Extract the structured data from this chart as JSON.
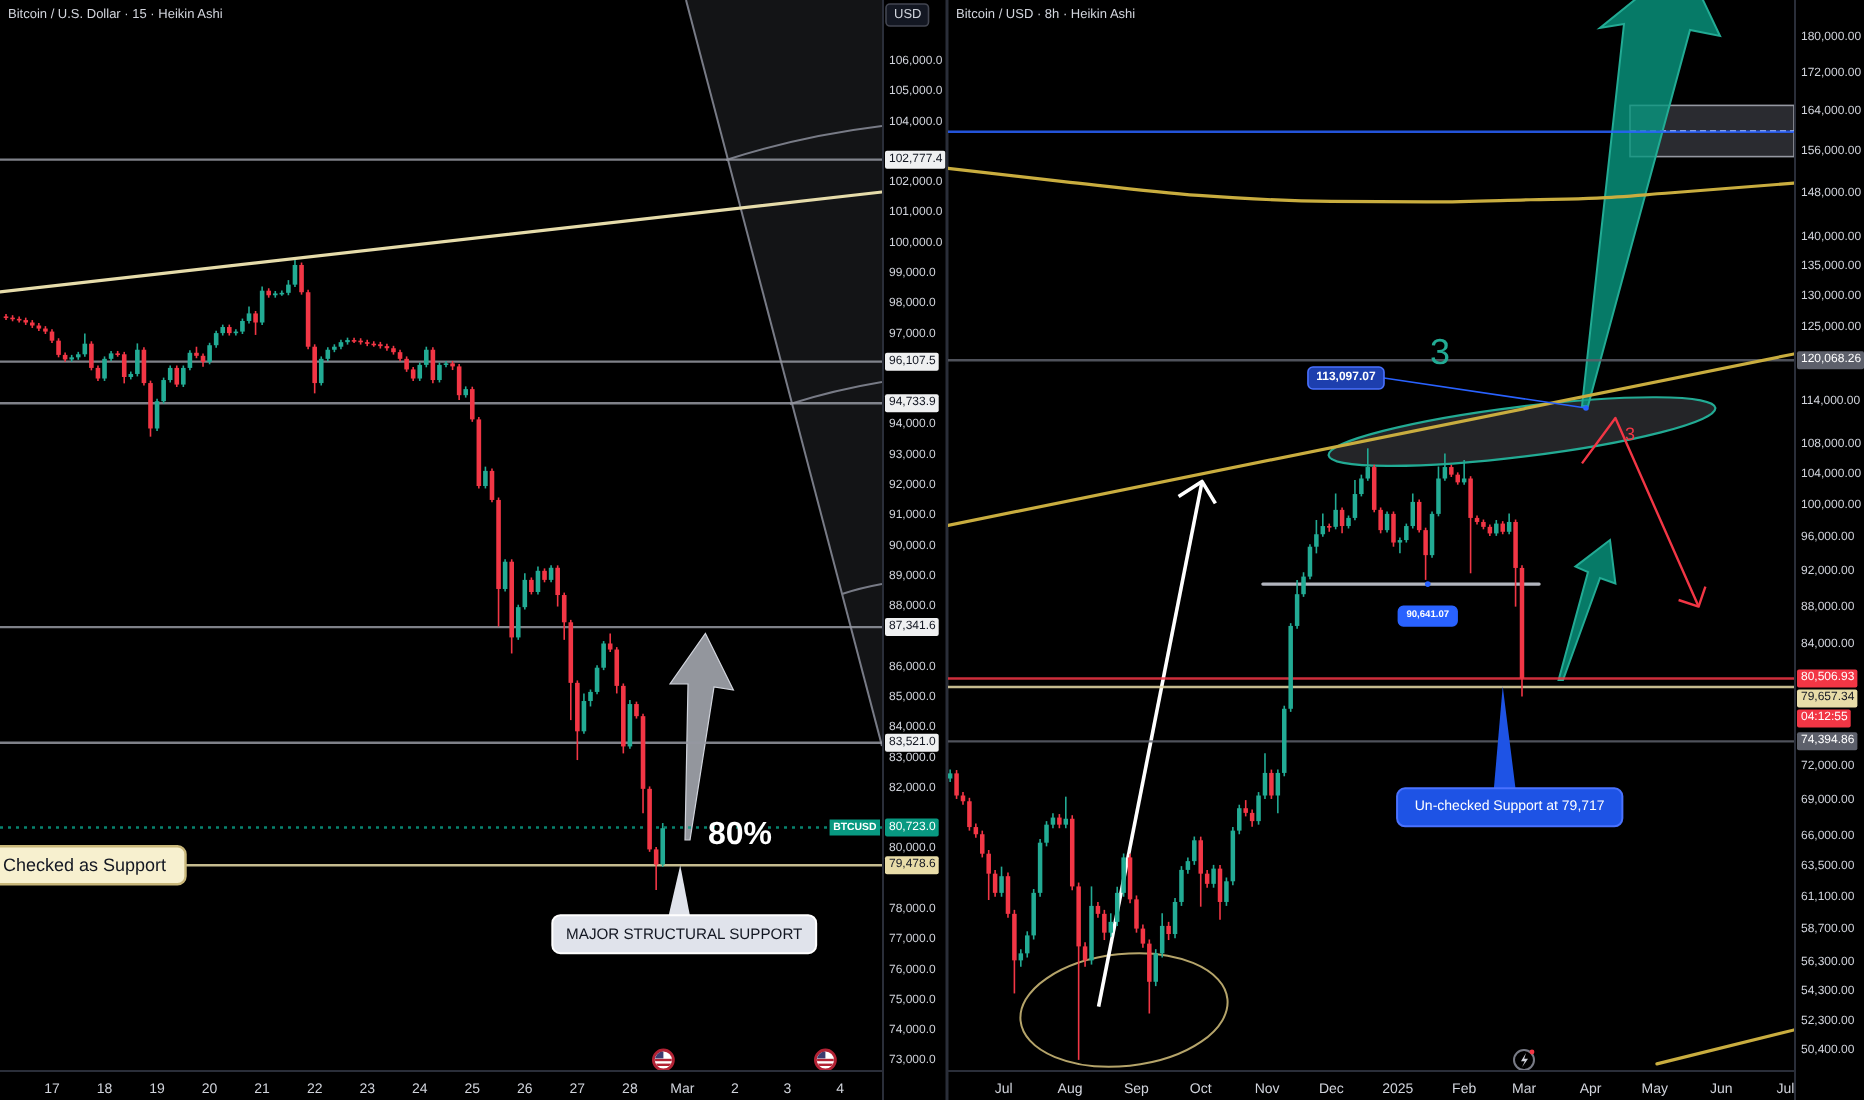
{
  "chart_data": [
    {
      "type": "candlestick",
      "title": "Bitcoin / U.S. Dollar · 15 · Heikin Ashi",
      "ylabel": "USD",
      "x": [
        "2025-02-16T03:00",
        "2025-02-16T06:00",
        "2025-02-16T09:00",
        "2025-02-16T12:00",
        "2025-02-16T15:00",
        "2025-02-16T18:00",
        "2025-02-16T21:00",
        "2025-02-17T00:00",
        "2025-02-17T03:00",
        "2025-02-17T06:00",
        "2025-02-17T09:00",
        "2025-02-17T12:00",
        "2025-02-17T15:00",
        "2025-02-17T18:00",
        "2025-02-17T21:00",
        "2025-02-18T00:00",
        "2025-02-18T03:00",
        "2025-02-18T06:00",
        "2025-02-18T09:00",
        "2025-02-18T12:00",
        "2025-02-18T15:00",
        "2025-02-18T18:00",
        "2025-02-18T21:00",
        "2025-02-19T00:00",
        "2025-02-19T03:00",
        "2025-02-19T06:00",
        "2025-02-19T09:00",
        "2025-02-19T12:00",
        "2025-02-19T15:00",
        "2025-02-19T18:00",
        "2025-02-19T21:00",
        "2025-02-20T00:00",
        "2025-02-20T03:00",
        "2025-02-20T06:00",
        "2025-02-20T09:00",
        "2025-02-20T12:00",
        "2025-02-20T15:00",
        "2025-02-20T18:00",
        "2025-02-20T21:00",
        "2025-02-21T00:00",
        "2025-02-21T03:00",
        "2025-02-21T06:00",
        "2025-02-21T09:00",
        "2025-02-21T12:00",
        "2025-02-21T15:00",
        "2025-02-21T18:00",
        "2025-02-21T21:00",
        "2025-02-22T00:00",
        "2025-02-22T03:00",
        "2025-02-22T06:00",
        "2025-02-22T09:00",
        "2025-02-22T12:00",
        "2025-02-22T15:00",
        "2025-02-22T18:00",
        "2025-02-22T21:00",
        "2025-02-23T00:00",
        "2025-02-23T03:00",
        "2025-02-23T06:00",
        "2025-02-23T09:00",
        "2025-02-23T12:00",
        "2025-02-23T15:00",
        "2025-02-23T18:00",
        "2025-02-23T21:00",
        "2025-02-24T00:00",
        "2025-02-24T03:00",
        "2025-02-24T06:00",
        "2025-02-24T09:00",
        "2025-02-24T12:00",
        "2025-02-24T15:00",
        "2025-02-24T18:00",
        "2025-02-24T21:00",
        "2025-02-25T00:00",
        "2025-02-25T03:00",
        "2025-02-25T06:00",
        "2025-02-25T09:00",
        "2025-02-25T12:00",
        "2025-02-25T15:00",
        "2025-02-25T18:00",
        "2025-02-25T21:00",
        "2025-02-26T00:00",
        "2025-02-26T03:00",
        "2025-02-26T06:00",
        "2025-02-26T09:00",
        "2025-02-26T12:00",
        "2025-02-26T15:00",
        "2025-02-26T18:00",
        "2025-02-26T21:00",
        "2025-02-27T00:00",
        "2025-02-27T03:00",
        "2025-02-27T06:00",
        "2025-02-27T09:00",
        "2025-02-27T12:00",
        "2025-02-27T15:00",
        "2025-02-27T18:00",
        "2025-02-27T21:00",
        "2025-02-28T00:00",
        "2025-02-28T03:00",
        "2025-02-28T06:00",
        "2025-02-28T09:00",
        "2025-02-28T12:00",
        "2025-02-28T15:00"
      ],
      "ohlc": [
        [
          97600,
          97680,
          97480,
          97560
        ],
        [
          97560,
          97640,
          97440,
          97520
        ],
        [
          97520,
          97600,
          97400,
          97480
        ],
        [
          97480,
          97560,
          97320,
          97400
        ],
        [
          97400,
          97480,
          97220,
          97300
        ],
        [
          97300,
          97380,
          97120,
          97200
        ],
        [
          97200,
          97280,
          97020,
          97100
        ],
        [
          97100,
          97180,
          96720,
          96800
        ],
        [
          96800,
          96880,
          96250,
          96330
        ],
        [
          96330,
          96410,
          96100,
          96180
        ],
        [
          96180,
          96330,
          96100,
          96250
        ],
        [
          96250,
          96430,
          96170,
          96350
        ],
        [
          96350,
          97040,
          96270,
          96700
        ],
        [
          96700,
          96780,
          95820,
          95900
        ],
        [
          95900,
          95980,
          95470,
          95550
        ],
        [
          95550,
          96280,
          95470,
          96200
        ],
        [
          96200,
          96460,
          96120,
          96380
        ],
        [
          96380,
          96460,
          96270,
          96350
        ],
        [
          96350,
          96430,
          95390,
          95600
        ],
        [
          95600,
          95780,
          95520,
          95700
        ],
        [
          95700,
          96710,
          95620,
          96500
        ],
        [
          96500,
          96580,
          95320,
          95400
        ],
        [
          95400,
          95480,
          93630,
          93900
        ],
        [
          93900,
          94880,
          93820,
          94800
        ],
        [
          94800,
          95580,
          94720,
          95500
        ],
        [
          95500,
          95980,
          95420,
          95900
        ],
        [
          95900,
          95980,
          95270,
          95350
        ],
        [
          95350,
          95980,
          95270,
          95900
        ],
        [
          95900,
          96480,
          95820,
          96400
        ],
        [
          96400,
          96600,
          96220,
          96300
        ],
        [
          96300,
          96380,
          95940,
          96100
        ],
        [
          96100,
          96730,
          96020,
          96650
        ],
        [
          96650,
          97130,
          96570,
          97050
        ],
        [
          97050,
          97330,
          96970,
          97250
        ],
        [
          97250,
          97330,
          96970,
          97050
        ],
        [
          97050,
          97180,
          96970,
          97100
        ],
        [
          97100,
          97530,
          97020,
          97450
        ],
        [
          97450,
          97930,
          97370,
          97700
        ],
        [
          97700,
          97780,
          96990,
          97400
        ],
        [
          97400,
          98590,
          97320,
          98450
        ],
        [
          98450,
          98530,
          98220,
          98300
        ],
        [
          98300,
          98440,
          98220,
          98360
        ],
        [
          98360,
          98460,
          98280,
          98380
        ],
        [
          98380,
          98800,
          98300,
          98650
        ],
        [
          98650,
          99460,
          98570,
          99300
        ],
        [
          99300,
          99380,
          98320,
          98400
        ],
        [
          98400,
          98480,
          96520,
          96600
        ],
        [
          96600,
          96680,
          95060,
          95400
        ],
        [
          95400,
          96280,
          95320,
          96200
        ],
        [
          96200,
          96580,
          96120,
          96500
        ],
        [
          96500,
          96680,
          96420,
          96600
        ],
        [
          96600,
          96830,
          96520,
          96750
        ],
        [
          96750,
          96900,
          96670,
          96820
        ],
        [
          96820,
          96900,
          96720,
          96800
        ],
        [
          96800,
          96880,
          96670,
          96750
        ],
        [
          96750,
          96830,
          96620,
          96700
        ],
        [
          96700,
          96780,
          96600,
          96680
        ],
        [
          96680,
          96760,
          96540,
          96620
        ],
        [
          96620,
          96700,
          96470,
          96550
        ],
        [
          96550,
          96630,
          96340,
          96420
        ],
        [
          96420,
          96500,
          96120,
          96200
        ],
        [
          96200,
          96280,
          95770,
          95850
        ],
        [
          95850,
          95930,
          95470,
          95550
        ],
        [
          95550,
          96080,
          95470,
          96000
        ],
        [
          96000,
          96600,
          95920,
          96500
        ],
        [
          96500,
          96580,
          95390,
          95500
        ],
        [
          95500,
          96080,
          95420,
          96000
        ],
        [
          96000,
          96130,
          95920,
          96050
        ],
        [
          96050,
          96130,
          95830,
          95950
        ],
        [
          95950,
          96030,
          94840,
          95000
        ],
        [
          95000,
          95290,
          94920,
          95200
        ],
        [
          95200,
          95280,
          94120,
          94200
        ],
        [
          94200,
          94280,
          91920,
          92000
        ],
        [
          92000,
          92640,
          91920,
          92500
        ],
        [
          92500,
          92580,
          91460,
          91540
        ],
        [
          91540,
          91620,
          87360,
          88600
        ],
        [
          88600,
          89580,
          88520,
          89500
        ],
        [
          89500,
          89580,
          86470,
          87000
        ],
        [
          87000,
          88080,
          86920,
          88000
        ],
        [
          88000,
          89120,
          87920,
          88900
        ],
        [
          88900,
          88980,
          88420,
          88500
        ],
        [
          88500,
          89340,
          88420,
          89200
        ],
        [
          89200,
          89280,
          88820,
          88900
        ],
        [
          88900,
          89380,
          88820,
          89300
        ],
        [
          89300,
          89380,
          88020,
          88400
        ],
        [
          88400,
          88480,
          86920,
          87500
        ],
        [
          87500,
          87580,
          84270,
          85500
        ],
        [
          85500,
          85580,
          82950,
          83900
        ],
        [
          83900,
          85150,
          83820,
          84900
        ],
        [
          84900,
          85280,
          84720,
          85200
        ],
        [
          85200,
          86080,
          85120,
          86000
        ],
        [
          86000,
          86880,
          85920,
          86800
        ],
        [
          86800,
          87130,
          86520,
          86600
        ],
        [
          86600,
          86680,
          85150,
          85400
        ],
        [
          85400,
          85480,
          83170,
          83400
        ],
        [
          83400,
          84930,
          83320,
          84800
        ],
        [
          84800,
          84880,
          84320,
          84400
        ],
        [
          84400,
          84480,
          81190,
          82000
        ],
        [
          82000,
          82080,
          79920,
          80000
        ],
        [
          80000,
          80080,
          78660,
          79500
        ],
        [
          79500,
          80870,
          79420,
          80700
        ]
      ],
      "xlim": [
        "2025-02-16T00:15",
        "2025-03-04T19:10"
      ],
      "xticks": [
        {
          "value": "2025-02-17",
          "label": "17"
        },
        {
          "value": "2025-02-18",
          "label": "18"
        },
        {
          "value": "2025-02-19",
          "label": "19"
        },
        {
          "value": "2025-02-20",
          "label": "20"
        },
        {
          "value": "2025-02-21",
          "label": "21"
        },
        {
          "value": "2025-02-22",
          "label": "22"
        },
        {
          "value": "2025-02-23",
          "label": "23"
        },
        {
          "value": "2025-02-24",
          "label": "24"
        },
        {
          "value": "2025-02-25",
          "label": "25"
        },
        {
          "value": "2025-02-26",
          "label": "26"
        },
        {
          "value": "2025-02-27",
          "label": "27"
        },
        {
          "value": "2025-02-28",
          "label": "28"
        },
        {
          "value": "2025-03-01",
          "label": "Mar"
        },
        {
          "value": "2025-03-02",
          "label": "2"
        },
        {
          "value": "2025-03-03",
          "label": "3"
        },
        {
          "value": "2025-03-04",
          "label": "4"
        }
      ],
      "ylim": [
        72715,
        108050
      ],
      "yticks": [
        {
          "value": 106000,
          "label": "106,000.0"
        },
        {
          "value": 105000,
          "label": "105,000.0"
        },
        {
          "value": 104000,
          "label": "104,000.0"
        },
        {
          "value": 102000,
          "label": "102,000.0"
        },
        {
          "value": 101000,
          "label": "101,000.0"
        },
        {
          "value": 100000,
          "label": "100,000.0"
        },
        {
          "value": 99000,
          "label": "99,000.0"
        },
        {
          "value": 98000,
          "label": "98,000.0"
        },
        {
          "value": 97000,
          "label": "97,000.0"
        },
        {
          "value": 94000,
          "label": "94,000.0"
        },
        {
          "value": 93000,
          "label": "93,000.0"
        },
        {
          "value": 92000,
          "label": "92,000.0"
        },
        {
          "value": 91000,
          "label": "91,000.0"
        },
        {
          "value": 90000,
          "label": "90,000.0"
        },
        {
          "value": 89000,
          "label": "89,000.0"
        },
        {
          "value": 88000,
          "label": "88,000.0"
        },
        {
          "value": 86000,
          "label": "86,000.0"
        },
        {
          "value": 85000,
          "label": "85,000.0"
        },
        {
          "value": 84000,
          "label": "84,000.0"
        },
        {
          "value": 83000,
          "label": "83,000.0"
        },
        {
          "value": 82000,
          "label": "82,000.0"
        },
        {
          "value": 80000,
          "label": "80,000.0"
        },
        {
          "value": 78000,
          "label": "78,000.0"
        },
        {
          "value": 77000,
          "label": "77,000.0"
        },
        {
          "value": 76000,
          "label": "76,000.0"
        },
        {
          "value": 75000,
          "label": "75,000.0"
        },
        {
          "value": 74000,
          "label": "74,000.0"
        },
        {
          "value": 73000,
          "label": "73,000.0"
        }
      ],
      "series": [
        {
          "type": "line",
          "x": [
            "2025-02-16T00:15",
            "2025-03-04T19:10"
          ],
          "values": [
            98410,
            101710
          ],
          "color": "#e6dcaa"
        }
      ],
      "ref_lines": [
        {
          "axis": "y",
          "value": 102777.4,
          "label": "102,777.4",
          "color": "#9598a1"
        },
        {
          "axis": "y",
          "value": 96107.5,
          "label": "96,107.5",
          "color": "#9598a1"
        },
        {
          "axis": "y",
          "value": 94733.9,
          "label": "94,733.9",
          "color": "#9598a1"
        },
        {
          "axis": "y",
          "value": 87341.6,
          "label": "87,341.6",
          "color": "#9598a1"
        },
        {
          "axis": "y",
          "value": 83521.0,
          "label": "83,521.0",
          "color": "#9598a1"
        },
        {
          "axis": "y",
          "value": 80723.0,
          "label": "80,723.0",
          "color": "#089981",
          "line_style": "dotted"
        },
        {
          "axis": "y",
          "value": 79478.6,
          "label": "79,478.6",
          "color": "#e8dca8"
        }
      ],
      "annotations": [
        {
          "text": "Checked as Support",
          "y": 79478.6
        },
        {
          "text": "MAJOR STRUCTURAL SUPPORT",
          "x": "2025-02-28T23:00",
          "y": 79478.6
        },
        "80%",
        {
          "text": "BTCUSD",
          "y": 80723.0
        }
      ]
    },
    {
      "type": "candlestick",
      "title": "Bitcoin / USD · 8h · Heikin Ashi",
      "x": [
        "2024-06-06",
        "2024-06-09",
        "2024-06-12",
        "2024-06-15",
        "2024-06-18",
        "2024-06-21",
        "2024-06-24",
        "2024-06-27",
        "2024-06-30",
        "2024-07-03",
        "2024-07-06",
        "2024-07-09",
        "2024-07-12",
        "2024-07-15",
        "2024-07-18",
        "2024-07-21",
        "2024-07-24",
        "2024-07-27",
        "2024-07-30",
        "2024-08-02",
        "2024-08-05",
        "2024-08-08",
        "2024-08-11",
        "2024-08-14",
        "2024-08-17",
        "2024-08-20",
        "2024-08-23",
        "2024-08-26",
        "2024-08-29",
        "2024-09-01",
        "2024-09-04",
        "2024-09-07",
        "2024-09-10",
        "2024-09-13",
        "2024-09-16",
        "2024-09-19",
        "2024-09-22",
        "2024-09-25",
        "2024-09-28",
        "2024-10-01",
        "2024-10-04",
        "2024-10-07",
        "2024-10-10",
        "2024-10-13",
        "2024-10-16",
        "2024-10-19",
        "2024-10-22",
        "2024-10-25",
        "2024-10-28",
        "2024-10-31",
        "2024-11-03",
        "2024-11-06",
        "2024-11-09",
        "2024-11-12",
        "2024-11-15",
        "2024-11-18",
        "2024-11-21",
        "2024-11-24",
        "2024-11-27",
        "2024-11-30",
        "2024-12-03",
        "2024-12-06",
        "2024-12-09",
        "2024-12-12",
        "2024-12-15",
        "2024-12-18",
        "2024-12-21",
        "2024-12-24",
        "2024-12-27",
        "2024-12-30",
        "2025-01-02",
        "2025-01-05",
        "2025-01-08",
        "2025-01-11",
        "2025-01-14",
        "2025-01-17",
        "2025-01-20",
        "2025-01-23",
        "2025-01-26",
        "2025-01-29",
        "2025-02-01",
        "2025-02-04",
        "2025-02-07",
        "2025-02-10",
        "2025-02-13",
        "2025-02-16",
        "2025-02-19",
        "2025-02-22",
        "2025-02-25",
        "2025-02-28"
      ],
      "ohlc": [
        [
          71000,
          71800,
          70700,
          71460
        ],
        [
          71460,
          71760,
          69200,
          69500
        ],
        [
          69500,
          69800,
          68700,
          69000
        ],
        [
          69000,
          69300,
          66500,
          66800
        ],
        [
          66800,
          67100,
          65900,
          66200
        ],
        [
          66200,
          66500,
          64300,
          64600
        ],
        [
          64600,
          64900,
          60950,
          63000
        ],
        [
          63000,
          63300,
          61200,
          61500
        ],
        [
          61500,
          63560,
          61200,
          62800
        ],
        [
          62800,
          63100,
          59600,
          59900
        ],
        [
          59900,
          60200,
          54200,
          56500
        ],
        [
          56500,
          57300,
          56050,
          57000
        ],
        [
          57000,
          58600,
          56700,
          58300
        ],
        [
          58300,
          61800,
          58000,
          61500
        ],
        [
          61500,
          65800,
          61200,
          65500
        ],
        [
          65500,
          67300,
          65200,
          67000
        ],
        [
          67000,
          67960,
          66700,
          67600
        ],
        [
          67600,
          67900,
          66700,
          67000
        ],
        [
          67000,
          69400,
          66700,
          67500
        ],
        [
          67500,
          67800,
          61700,
          62000
        ],
        [
          62000,
          62300,
          49860,
          57500
        ],
        [
          57500,
          57800,
          56050,
          56500
        ],
        [
          56500,
          62000,
          56200,
          60500
        ],
        [
          60500,
          60800,
          59600,
          59900
        ],
        [
          59900,
          60200,
          57960,
          58500
        ],
        [
          58500,
          59940,
          58200,
          59300
        ],
        [
          59300,
          61980,
          59000,
          61500
        ],
        [
          61500,
          64620,
          61200,
          64300
        ],
        [
          64300,
          64600,
          60700,
          61000
        ],
        [
          61000,
          61300,
          58500,
          58800
        ],
        [
          58800,
          59100,
          57400,
          57700
        ],
        [
          57700,
          58000,
          52850,
          55000
        ],
        [
          55000,
          57300,
          54700,
          57000
        ],
        [
          57000,
          59940,
          56700,
          59000
        ],
        [
          59000,
          59300,
          57960,
          58400
        ],
        [
          58400,
          61100,
          58100,
          60800
        ],
        [
          60800,
          63600,
          60500,
          63300
        ],
        [
          63300,
          64300,
          63000,
          64000
        ],
        [
          64000,
          66010,
          63700,
          65700
        ],
        [
          65700,
          66000,
          60440,
          63000
        ],
        [
          63000,
          63300,
          61900,
          62200
        ],
        [
          62200,
          63700,
          61900,
          63400
        ],
        [
          63400,
          63700,
          59450,
          60800
        ],
        [
          60800,
          62700,
          60500,
          62400
        ],
        [
          62400,
          66800,
          62100,
          66500
        ],
        [
          66500,
          68700,
          66200,
          68400
        ],
        [
          68400,
          69100,
          67700,
          68000
        ],
        [
          68000,
          68300,
          66830,
          67300
        ],
        [
          67300,
          69800,
          67000,
          69500
        ],
        [
          69500,
          73280,
          69200,
          71500
        ],
        [
          71500,
          71800,
          69200,
          69500
        ],
        [
          69500,
          71800,
          67960,
          71500
        ],
        [
          71500,
          77800,
          71200,
          77500
        ],
        [
          77500,
          86300,
          77200,
          86000
        ],
        [
          86000,
          91120,
          85700,
          89500
        ],
        [
          89500,
          92000,
          89200,
          91500
        ],
        [
          91500,
          95300,
          91200,
          95000
        ],
        [
          95000,
          98240,
          94210,
          96500
        ],
        [
          96500,
          99050,
          96200,
          97500
        ],
        [
          97500,
          97800,
          96800,
          97400
        ],
        [
          97400,
          101570,
          97100,
          99500
        ],
        [
          99500,
          99800,
          96610,
          97500
        ],
        [
          97500,
          98800,
          97200,
          98500
        ],
        [
          98500,
          103300,
          98200,
          101500
        ],
        [
          101500,
          104000,
          101200,
          103500
        ],
        [
          103500,
          107500,
          103200,
          105000
        ],
        [
          105000,
          105300,
          99200,
          99500
        ],
        [
          99500,
          99800,
          96610,
          97000
        ],
        [
          97000,
          99300,
          96700,
          99000
        ],
        [
          99000,
          99300,
          95000,
          95500
        ],
        [
          95500,
          96100,
          94210,
          95800
        ],
        [
          95800,
          97800,
          95500,
          97500
        ],
        [
          97500,
          101570,
          97200,
          100500
        ],
        [
          100500,
          100800,
          96700,
          97000
        ],
        [
          97000,
          97300,
          91120,
          94000
        ],
        [
          94000,
          99300,
          93700,
          99000
        ],
        [
          99000,
          105070,
          98700,
          103500
        ],
        [
          103500,
          106810,
          103200,
          105000
        ],
        [
          105000,
          105300,
          103700,
          104000
        ],
        [
          104000,
          104300,
          102700,
          103000
        ],
        [
          103000,
          105930,
          102700,
          103500
        ],
        [
          103500,
          103800,
          91880,
          98500
        ],
        [
          98500,
          98800,
          97700,
          98000
        ],
        [
          98000,
          98300,
          97100,
          97400
        ],
        [
          97400,
          97700,
          96300,
          96600
        ],
        [
          96600,
          98240,
          96300,
          97800
        ],
        [
          97800,
          98100,
          96500,
          96800
        ],
        [
          96800,
          99050,
          96500,
          98000
        ],
        [
          98000,
          98300,
          88110,
          92500
        ],
        [
          92500,
          92800,
          78700,
          80500
        ]
      ],
      "xlim": [
        "2024-06-05",
        "2025-07-05"
      ],
      "xticks": [
        {
          "value": "2024-07-01",
          "label": "Jul"
        },
        {
          "value": "2024-08-01",
          "label": "Aug"
        },
        {
          "value": "2024-09-01",
          "label": "Sep"
        },
        {
          "value": "2024-10-01",
          "label": "Oct"
        },
        {
          "value": "2024-11-01",
          "label": "Nov"
        },
        {
          "value": "2024-12-01",
          "label": "Dec"
        },
        {
          "value": "2025-01-01",
          "label": "2025"
        },
        {
          "value": "2025-02-01",
          "label": "Feb"
        },
        {
          "value": "2025-03-01",
          "label": "Mar"
        },
        {
          "value": "2025-04-01",
          "label": "Apr"
        },
        {
          "value": "2025-05-01",
          "label": "May"
        },
        {
          "value": "2025-06-01",
          "label": "Jun"
        },
        {
          "value": "2025-07-01",
          "label": "Jul"
        }
      ],
      "ylim": [
        49230,
        188800
      ],
      "log": true,
      "yticks": [
        {
          "value": 180000,
          "label": "180,000.00"
        },
        {
          "value": 172000,
          "label": "172,000.00"
        },
        {
          "value": 164000,
          "label": "164,000.00"
        },
        {
          "value": 156000,
          "label": "156,000.00"
        },
        {
          "value": 148000,
          "label": "148,000.00"
        },
        {
          "value": 140000,
          "label": "140,000.00"
        },
        {
          "value": 135000,
          "label": "135,000.00"
        },
        {
          "value": 130000,
          "label": "130,000.00"
        },
        {
          "value": 125000,
          "label": "125,000.00"
        },
        {
          "value": 114000,
          "label": "114,000.00"
        },
        {
          "value": 108000,
          "label": "108,000.00"
        },
        {
          "value": 104000,
          "label": "104,000.00"
        },
        {
          "value": 100000,
          "label": "100,000.00"
        },
        {
          "value": 96000,
          "label": "96,000.00"
        },
        {
          "value": 92000,
          "label": "92,000.00"
        },
        {
          "value": 88000,
          "label": "88,000.00"
        },
        {
          "value": 84000,
          "label": "84,000.00"
        },
        {
          "value": 72000,
          "label": "72,000.00"
        },
        {
          "value": 69000,
          "label": "69,000.00"
        },
        {
          "value": 66000,
          "label": "66,000.00"
        },
        {
          "value": 63500,
          "label": "63,500.00"
        },
        {
          "value": 61100,
          "label": "61,100.00"
        },
        {
          "value": 58700,
          "label": "58,700.00"
        },
        {
          "value": 56300,
          "label": "56,300.00"
        },
        {
          "value": 54300,
          "label": "54,300.00"
        },
        {
          "value": 52300,
          "label": "52,300.00"
        },
        {
          "value": 50400,
          "label": "50,400.00"
        }
      ],
      "series": [
        {
          "type": "line",
          "x": [
            "2024-06-05",
            "2025-07-05"
          ],
          "values": [
            97580,
            121030
          ],
          "color": "#c9ad3f"
        },
        {
          "type": "line",
          "x": [
            "2024-06-05",
            "2024-07-29",
            "2024-09-30",
            "2024-12-01",
            "2025-01-17",
            "2025-03-04",
            "2025-04-04",
            "2025-05-06",
            "2025-07-05"
          ],
          "values": [
            152800,
            150300,
            147700,
            146600,
            146500,
            146900,
            147200,
            148100,
            150000
          ],
          "color": "#c9ad3f"
        },
        {
          "type": "line",
          "x": [
            "2025-05-02",
            "2025-07-05"
          ],
          "values": [
            49610,
            51770
          ],
          "color": "#c9ad3f"
        },
        {
          "type": "line",
          "x": [
            "2024-10-30",
            "2025-03-08"
          ],
          "values": [
            90641.07,
            90641.07
          ],
          "color": "#b2b5be"
        }
      ],
      "ref_lines": [
        {
          "axis": "y",
          "value": 160000,
          "color": "#2962ff"
        },
        {
          "axis": "y",
          "value": 120068.26,
          "label": "120,068.26",
          "color": "#5d606b"
        },
        {
          "axis": "y",
          "value": 80506.93,
          "label": "80,506.93",
          "color": "#f23645"
        },
        {
          "axis": "y",
          "value": 79657.34,
          "label": "79,657.34",
          "color": "#e8dca8"
        },
        {
          "axis": "y",
          "value": 74394.86,
          "label": "74,394.86",
          "color": "#5d606b"
        }
      ],
      "annotations": [
        "3",
        "113,097.07",
        "3",
        {
          "text": "90,641.07",
          "x": "2025-01-15",
          "y": 90641.07
        },
        {
          "text": "Un-checked Support at 79,717",
          "x": "2025-02-19",
          "y": 79717
        },
        "04:12:55"
      ]
    }
  ]
}
